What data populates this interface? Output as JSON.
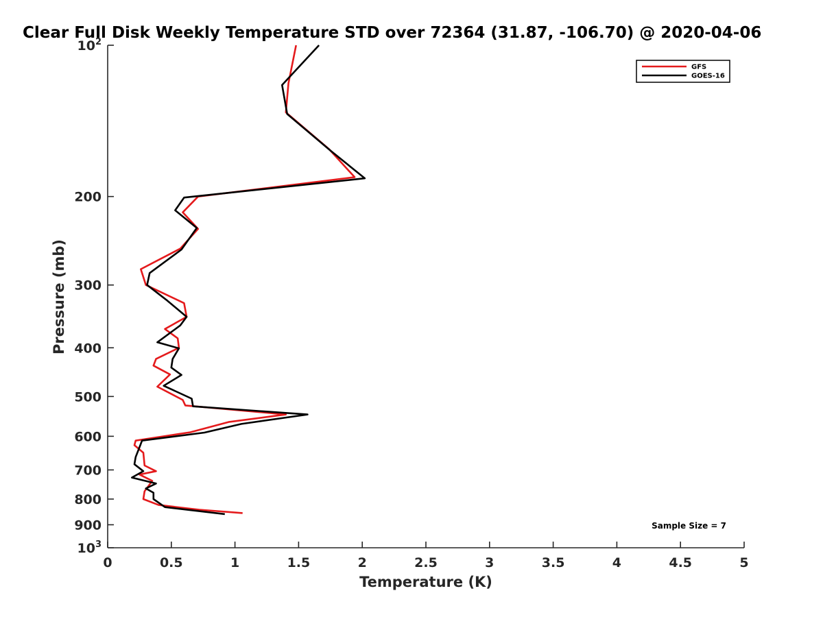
{
  "chart_data": {
    "type": "line",
    "title": "Clear Full Disk Weekly Temperature STD over 72364 (31.87, -106.70) @ 2020-04-06",
    "xlabel": "Temperature (K)",
    "ylabel": "Pressure (mb)",
    "xlim": [
      0,
      5
    ],
    "ylim": [
      100,
      1000
    ],
    "yscale": "log",
    "y_reversed": true,
    "x_ticks": [
      "0",
      "0.5",
      "1",
      "1.5",
      "2",
      "2.5",
      "3",
      "3.5",
      "4",
      "4.5",
      "5"
    ],
    "y_ticks": [
      {
        "value": 100,
        "base": "10",
        "exp": "2"
      },
      {
        "value": 200,
        "label": "200"
      },
      {
        "value": 300,
        "label": "300"
      },
      {
        "value": 400,
        "label": "400"
      },
      {
        "value": 500,
        "label": "500"
      },
      {
        "value": 600,
        "label": "600"
      },
      {
        "value": 700,
        "label": "700"
      },
      {
        "value": 800,
        "label": "800"
      },
      {
        "value": 900,
        "label": "900"
      },
      {
        "value": 1000,
        "base": "10",
        "exp": "3"
      }
    ],
    "grid": false,
    "legend_position": "top-right",
    "annotation": "Sample Size = 7",
    "series": [
      {
        "name": "GFS",
        "color": "#e41a1c",
        "points": [
          [
            1.48,
            100
          ],
          [
            1.42,
            119
          ],
          [
            1.4,
            136
          ],
          [
            1.74,
            161
          ],
          [
            1.94,
            183
          ],
          [
            0.71,
            200
          ],
          [
            0.59,
            215
          ],
          [
            0.71,
            232
          ],
          [
            0.57,
            254
          ],
          [
            0.26,
            279
          ],
          [
            0.3,
            300
          ],
          [
            0.6,
            326
          ],
          [
            0.62,
            347
          ],
          [
            0.45,
            367
          ],
          [
            0.55,
            383
          ],
          [
            0.56,
            400
          ],
          [
            0.38,
            421
          ],
          [
            0.36,
            434
          ],
          [
            0.49,
            452
          ],
          [
            0.39,
            478
          ],
          [
            0.59,
            508
          ],
          [
            0.61,
            521
          ],
          [
            1.4,
            543
          ],
          [
            0.95,
            562
          ],
          [
            0.65,
            589
          ],
          [
            0.22,
            612
          ],
          [
            0.21,
            625
          ],
          [
            0.28,
            647
          ],
          [
            0.29,
            686
          ],
          [
            0.38,
            704
          ],
          [
            0.25,
            715
          ],
          [
            0.35,
            736
          ],
          [
            0.29,
            772
          ],
          [
            0.28,
            800
          ],
          [
            0.4,
            822
          ],
          [
            0.72,
            840
          ],
          [
            1.06,
            853
          ]
        ]
      },
      {
        "name": "GOES-16",
        "color": "#000000",
        "points": [
          [
            1.66,
            100
          ],
          [
            1.37,
            120
          ],
          [
            1.41,
            137
          ],
          [
            1.75,
            162
          ],
          [
            2.02,
            184
          ],
          [
            0.6,
            201
          ],
          [
            0.53,
            213
          ],
          [
            0.7,
            231
          ],
          [
            0.58,
            255
          ],
          [
            0.33,
            284
          ],
          [
            0.31,
            300
          ],
          [
            0.46,
            321
          ],
          [
            0.62,
            347
          ],
          [
            0.57,
            361
          ],
          [
            0.39,
            390
          ],
          [
            0.56,
            401
          ],
          [
            0.51,
            421
          ],
          [
            0.5,
            438
          ],
          [
            0.58,
            453
          ],
          [
            0.44,
            476
          ],
          [
            0.66,
            505
          ],
          [
            0.67,
            523
          ],
          [
            1.57,
            543
          ],
          [
            1.05,
            567
          ],
          [
            0.76,
            590
          ],
          [
            0.27,
            612
          ],
          [
            0.25,
            631
          ],
          [
            0.22,
            660
          ],
          [
            0.21,
            682
          ],
          [
            0.28,
            704
          ],
          [
            0.19,
            725
          ],
          [
            0.38,
            745
          ],
          [
            0.3,
            762
          ],
          [
            0.36,
            777
          ],
          [
            0.36,
            800
          ],
          [
            0.45,
            830
          ],
          [
            0.92,
            857
          ]
        ]
      }
    ]
  }
}
